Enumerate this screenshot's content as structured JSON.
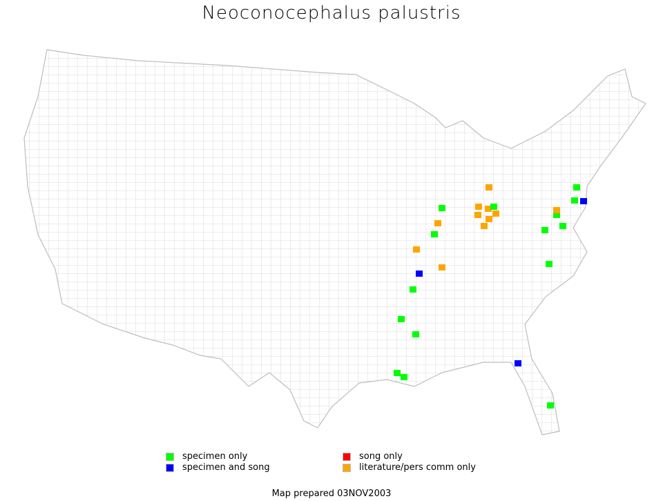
{
  "title": "Neoconocephalus palustris",
  "legend": [
    {
      "key": "specimen",
      "label": "specimen only",
      "color": "#00ff00"
    },
    {
      "key": "specimen_song",
      "label": "specimen and song",
      "color": "#0000ff"
    },
    {
      "key": "song",
      "label": "song only",
      "color": "#ff0000"
    },
    {
      "key": "literature",
      "label": "literature/pers comm only",
      "color": "#ffa500"
    }
  ],
  "footer": "Map prepared 03NOV2003",
  "colors": {
    "county_lines": "#c8c8c8",
    "background": "#ffffff"
  }
}
